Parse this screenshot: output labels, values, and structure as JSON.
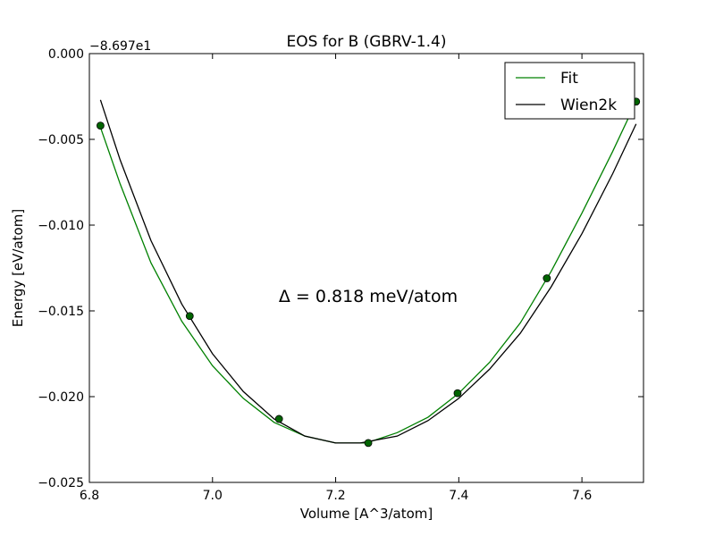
{
  "chart_data": {
    "type": "line",
    "title": "EOS for B (GBRV-1.4)",
    "xlabel": "Volume [A^3/atom]",
    "ylabel": "Energy [eV/atom]",
    "offset_label": "−8.697e1",
    "annotation": "Δ = 0.818 meV/atom",
    "xlim": [
      6.8,
      7.7
    ],
    "ylim": [
      -0.025,
      0.0
    ],
    "x_ticks": [
      6.8,
      7.0,
      7.2,
      7.4,
      7.6
    ],
    "x_tick_labels": [
      "6.8",
      "7.0",
      "7.2",
      "7.4",
      "7.6"
    ],
    "y_ticks": [
      0.0,
      -0.005,
      -0.01,
      -0.015,
      -0.02,
      -0.025
    ],
    "y_tick_labels": [
      "0.000",
      "−0.005",
      "−0.010",
      "−0.015",
      "−0.020",
      "−0.025"
    ],
    "grid": false,
    "legend_position": "top-right",
    "legend": [
      "Fit",
      "Wien2k"
    ],
    "series": [
      {
        "name": "Fit",
        "kind": "line",
        "color": "#008000",
        "x": [
          6.818,
          6.85,
          6.9,
          6.95,
          7.0,
          7.05,
          7.1,
          7.15,
          7.2,
          7.233,
          7.25,
          7.3,
          7.35,
          7.4,
          7.45,
          7.5,
          7.55,
          7.6,
          7.65,
          7.688
        ],
        "y": [
          -0.0043,
          -0.0076,
          -0.0122,
          -0.0156,
          -0.0182,
          -0.0201,
          -0.0215,
          -0.0223,
          -0.0227,
          -0.0227,
          -0.0227,
          -0.0221,
          -0.0212,
          -0.0198,
          -0.018,
          -0.0157,
          -0.0127,
          -0.0093,
          -0.0057,
          -0.0028
        ]
      },
      {
        "name": "Wien2k",
        "kind": "line",
        "color": "#000000",
        "x": [
          6.818,
          6.85,
          6.9,
          6.95,
          7.0,
          7.05,
          7.1,
          7.15,
          7.2,
          7.24,
          7.3,
          7.35,
          7.4,
          7.45,
          7.5,
          7.55,
          7.6,
          7.65,
          7.688
        ],
        "y": [
          -0.0027,
          -0.0062,
          -0.0109,
          -0.0146,
          -0.0175,
          -0.0197,
          -0.0213,
          -0.0223,
          -0.0227,
          -0.0227,
          -0.0223,
          -0.0214,
          -0.0201,
          -0.0184,
          -0.0163,
          -0.0136,
          -0.0105,
          -0.007,
          -0.0041
        ]
      },
      {
        "name": "",
        "kind": "points",
        "color": "#006400",
        "x": [
          6.818,
          6.963,
          7.108,
          7.253,
          7.398,
          7.543,
          7.688
        ],
        "y": [
          -0.0042,
          -0.0153,
          -0.0213,
          -0.0227,
          -0.0198,
          -0.0131,
          -0.0028
        ]
      }
    ]
  }
}
